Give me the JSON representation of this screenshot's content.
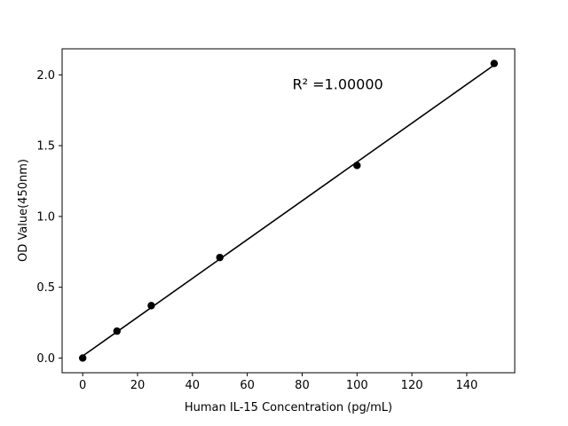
{
  "chart_data": {
    "type": "scatter",
    "title": "",
    "xlabel": "Human IL-15 Concentration (pg/mL)",
    "ylabel": "OD Value(450nm)",
    "x": [
      0,
      12.5,
      25,
      50,
      100,
      150
    ],
    "y": [
      0.0,
      0.19,
      0.37,
      0.71,
      1.36,
      2.08
    ],
    "fit_line": {
      "x_start": 0,
      "x_end": 150
    },
    "annotation": {
      "text": "R² =1.00000",
      "x": 93,
      "y": 1.9
    },
    "xlim": [
      -7.5,
      157.5
    ],
    "ylim": [
      -0.104,
      2.184
    ],
    "xticks": [
      0,
      20,
      40,
      60,
      80,
      100,
      120,
      140
    ],
    "yticks": [
      0.0,
      0.5,
      1.0,
      1.5,
      2.0
    ],
    "grid": false,
    "legend": null,
    "marker_color": "#000000",
    "line_color": "#000000",
    "axis_color": "#000000",
    "background": "#ffffff"
  }
}
